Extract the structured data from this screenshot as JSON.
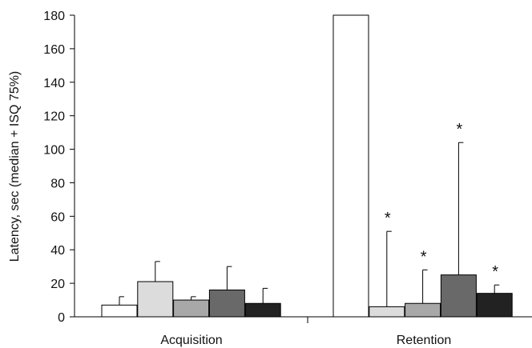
{
  "chart_data": {
    "type": "bar",
    "title": "",
    "xlabel": "",
    "ylabel": "Latency, sec (median + ISQ 75%)",
    "ylim": [
      0,
      180
    ],
    "yticks": [
      0,
      20,
      40,
      60,
      80,
      100,
      120,
      140,
      160,
      180
    ],
    "categories": [
      "Acquisition",
      "Retention"
    ],
    "grid": false,
    "series_colors": [
      "#ffffff",
      "#dcdcdc",
      "#a8a8a8",
      "#696969",
      "#222222"
    ],
    "series": [
      {
        "values": [
          7,
          180
        ],
        "upper": [
          12,
          180
        ],
        "significant": [
          false,
          false
        ]
      },
      {
        "values": [
          21,
          6
        ],
        "upper": [
          33,
          51
        ],
        "significant": [
          false,
          true
        ]
      },
      {
        "values": [
          10,
          8
        ],
        "upper": [
          12,
          28
        ],
        "significant": [
          false,
          true
        ]
      },
      {
        "values": [
          16,
          25
        ],
        "upper": [
          30,
          104
        ],
        "significant": [
          false,
          true
        ]
      },
      {
        "values": [
          8,
          14
        ],
        "upper": [
          17,
          19
        ],
        "significant": [
          false,
          true
        ]
      }
    ],
    "significance_marker": "*"
  }
}
